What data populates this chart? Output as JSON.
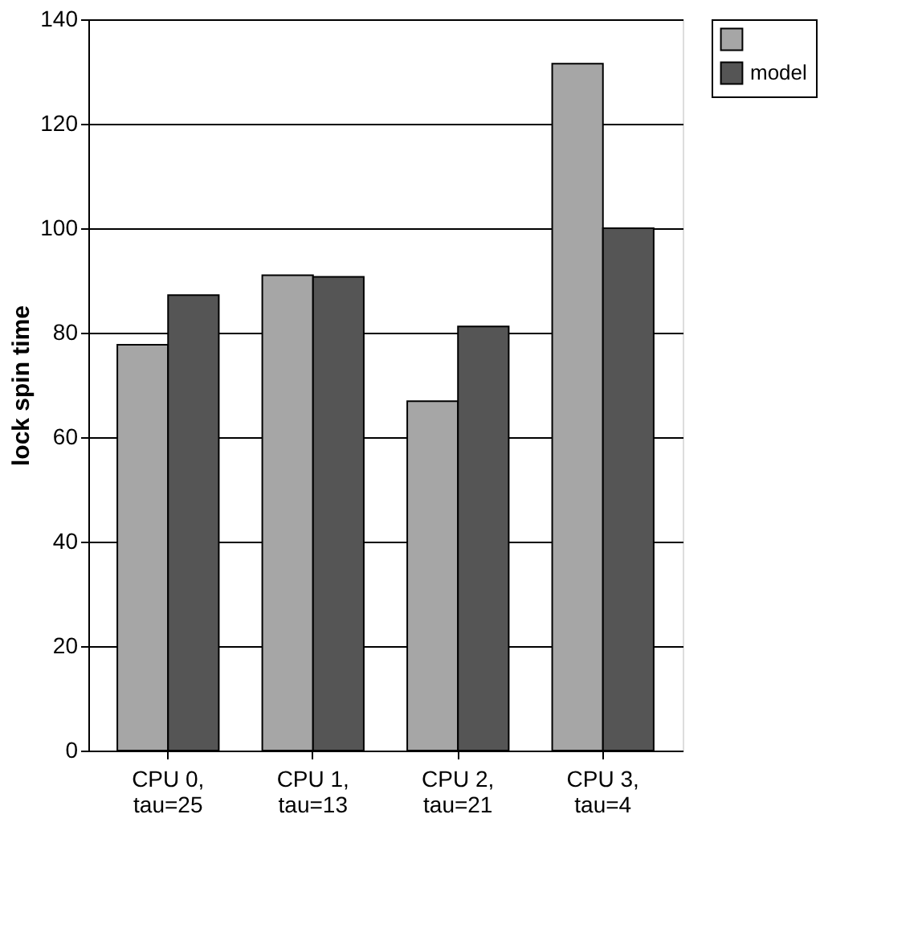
{
  "chart_data": {
    "type": "bar",
    "ylabel": "lock spin time",
    "categories": [
      "CPU 0,\ntau=25",
      "CPU 1,\ntau=13",
      "CPU 2,\ntau=21",
      "CPU 3,\ntau=4"
    ],
    "series": [
      {
        "color": "#a6a6a6",
        "values": [
          77.7,
          91.0,
          66.9,
          131.5
        ]
      },
      {
        "name": "model",
        "color": "#555555",
        "values": [
          87.2,
          90.7,
          81.2,
          100.0
        ]
      }
    ],
    "ylim": [
      0,
      140
    ],
    "yticks": [
      0,
      20,
      40,
      60,
      80,
      100,
      120,
      140
    ],
    "grid": "y",
    "legend": "right"
  }
}
